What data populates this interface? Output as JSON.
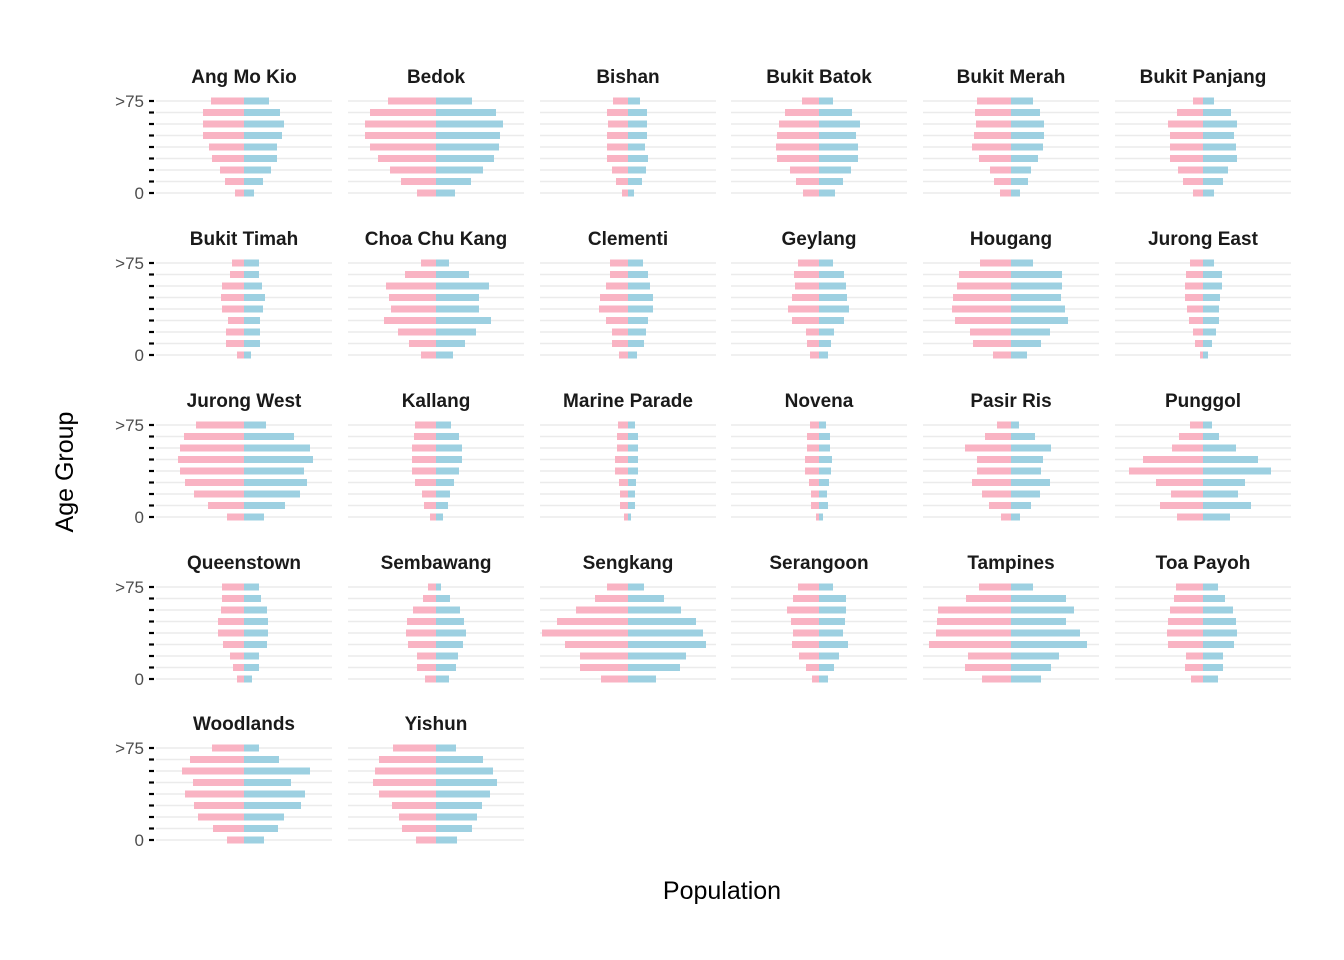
{
  "chart_data": {
    "type": "bar",
    "subtype": "population-pyramid-faceted",
    "xlabel": "Population",
    "ylabel": "Age Group",
    "y_tick_labels": [
      "0",
      ">75"
    ],
    "age_groups": 9,
    "female_color": "#f9b3c3",
    "male_color": "#9dd0e1",
    "grid_color": "#ebebeb",
    "grid": true,
    "ncol": 6,
    "panels": [
      {
        "name": "Ang Mo Kio",
        "female": [
          9,
          19,
          24,
          32,
          35,
          41,
          41,
          41,
          33
        ],
        "male": [
          10,
          19,
          27,
          33,
          33,
          38,
          40,
          36,
          25
        ]
      },
      {
        "name": "Bedok",
        "female": [
          19,
          35,
          46,
          58,
          66,
          71,
          71,
          66,
          48
        ],
        "male": [
          19,
          35,
          47,
          58,
          63,
          64,
          67,
          60,
          36
        ]
      },
      {
        "name": "Bishan",
        "female": [
          6,
          12,
          16,
          21,
          21,
          21,
          20,
          21,
          15
        ],
        "male": [
          6,
          14,
          18,
          20,
          17,
          19,
          19,
          19,
          12
        ]
      },
      {
        "name": "Bukit Batok",
        "female": [
          16,
          23,
          29,
          42,
          43,
          42,
          40,
          34,
          17
        ],
        "male": [
          16,
          24,
          32,
          39,
          39,
          37,
          41,
          33,
          14
        ]
      },
      {
        "name": "Bukit Merah",
        "female": [
          11,
          17,
          21,
          32,
          39,
          37,
          35,
          36,
          34
        ],
        "male": [
          9,
          17,
          20,
          27,
          32,
          33,
          33,
          29,
          22
        ]
      },
      {
        "name": "Bukit Panjang",
        "female": [
          10,
          20,
          25,
          33,
          33,
          33,
          35,
          26,
          10
        ],
        "male": [
          11,
          20,
          25,
          34,
          33,
          31,
          34,
          28,
          11
        ]
      },
      {
        "name": "Bukit Timah",
        "female": [
          7,
          18,
          18,
          16,
          22,
          23,
          22,
          14,
          12
        ],
        "male": [
          7,
          16,
          16,
          16,
          19,
          21,
          18,
          15,
          15
        ]
      },
      {
        "name": "Choa Chu Kang",
        "female": [
          15,
          27,
          38,
          52,
          45,
          47,
          50,
          31,
          15
        ],
        "male": [
          17,
          29,
          40,
          55,
          43,
          43,
          53,
          33,
          13
        ]
      },
      {
        "name": "Clementi",
        "female": [
          9,
          16,
          16,
          22,
          29,
          28,
          22,
          18,
          18
        ],
        "male": [
          9,
          16,
          18,
          20,
          25,
          25,
          22,
          20,
          15
        ]
      },
      {
        "name": "Geylang",
        "female": [
          9,
          12,
          13,
          27,
          31,
          27,
          24,
          25,
          21
        ],
        "male": [
          9,
          12,
          15,
          25,
          30,
          28,
          27,
          25,
          14
        ]
      },
      {
        "name": "Hougang",
        "female": [
          18,
          38,
          41,
          56,
          59,
          58,
          54,
          52,
          31
        ],
        "male": [
          16,
          30,
          39,
          57,
          54,
          50,
          51,
          51,
          22
        ]
      },
      {
        "name": "Jurong East",
        "female": [
          3,
          8,
          10,
          14,
          16,
          18,
          18,
          17,
          13
        ],
        "male": [
          5,
          9,
          13,
          16,
          16,
          17,
          19,
          19,
          11
        ]
      },
      {
        "name": "Jurong West",
        "female": [
          17,
          36,
          50,
          59,
          64,
          66,
          64,
          60,
          48
        ],
        "male": [
          20,
          41,
          56,
          63,
          60,
          69,
          66,
          50,
          22
        ]
      },
      {
        "name": "Kallang",
        "female": [
          6,
          12,
          14,
          21,
          24,
          24,
          24,
          22,
          21
        ],
        "male": [
          7,
          12,
          14,
          18,
          23,
          26,
          26,
          23,
          15
        ]
      },
      {
        "name": "Marine Parade",
        "female": [
          4,
          8,
          8,
          9,
          13,
          13,
          11,
          11,
          10
        ],
        "male": [
          3,
          7,
          7,
          8,
          10,
          10,
          10,
          10,
          7
        ]
      },
      {
        "name": "Novena",
        "female": [
          3,
          8,
          8,
          10,
          14,
          14,
          12,
          12,
          9
        ],
        "male": [
          4,
          9,
          8,
          10,
          12,
          13,
          11,
          11,
          7
        ]
      },
      {
        "name": "Pasir Ris",
        "female": [
          10,
          22,
          29,
          39,
          34,
          34,
          46,
          26,
          14
        ],
        "male": [
          9,
          20,
          29,
          39,
          30,
          32,
          40,
          24,
          8
        ]
      },
      {
        "name": "Punggol",
        "female": [
          26,
          43,
          32,
          47,
          74,
          60,
          31,
          24,
          13
        ],
        "male": [
          27,
          48,
          35,
          42,
          68,
          55,
          33,
          16,
          9
        ]
      },
      {
        "name": "Queenstown",
        "female": [
          7,
          11,
          14,
          21,
          26,
          26,
          23,
          22,
          22
        ],
        "male": [
          8,
          15,
          15,
          23,
          24,
          24,
          23,
          17,
          15
        ]
      },
      {
        "name": "Sembawang",
        "female": [
          11,
          19,
          19,
          28,
          30,
          29,
          23,
          13,
          8
        ],
        "male": [
          13,
          20,
          22,
          27,
          30,
          28,
          24,
          14,
          5
        ]
      },
      {
        "name": "Sengkang",
        "female": [
          27,
          48,
          48,
          63,
          86,
          71,
          52,
          33,
          21
        ],
        "male": [
          28,
          52,
          58,
          78,
          75,
          68,
          53,
          36,
          16
        ]
      },
      {
        "name": "Serangoon",
        "female": [
          7,
          13,
          20,
          27,
          26,
          28,
          32,
          26,
          21
        ],
        "male": [
          9,
          15,
          20,
          29,
          24,
          26,
          27,
          27,
          14
        ]
      },
      {
        "name": "Tampines",
        "female": [
          29,
          46,
          43,
          82,
          75,
          74,
          73,
          45,
          32
        ],
        "male": [
          30,
          40,
          48,
          76,
          69,
          55,
          63,
          55,
          22
        ]
      },
      {
        "name": "Toa Payoh",
        "female": [
          12,
          18,
          17,
          35,
          36,
          35,
          33,
          29,
          27
        ],
        "male": [
          15,
          20,
          20,
          31,
          34,
          33,
          30,
          22,
          15
        ]
      },
      {
        "name": "Woodlands",
        "female": [
          17,
          31,
          46,
          50,
          59,
          51,
          62,
          54,
          32
        ],
        "male": [
          20,
          34,
          40,
          57,
          61,
          47,
          66,
          35,
          15
        ]
      },
      {
        "name": "Yishun",
        "female": [
          20,
          34,
          37,
          44,
          57,
          63,
          61,
          57,
          43
        ],
        "male": [
          21,
          36,
          41,
          46,
          54,
          61,
          57,
          47,
          20
        ]
      }
    ]
  }
}
